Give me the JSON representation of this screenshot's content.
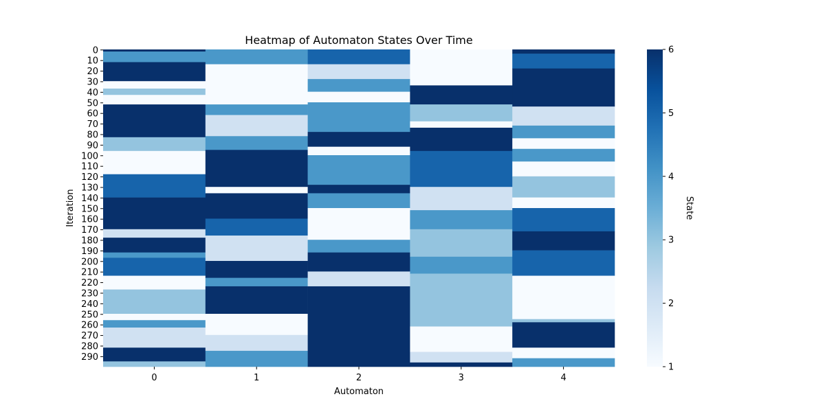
{
  "chart_data": {
    "type": "heatmap",
    "title": "Heatmap of Automaton States Over Time",
    "xlabel": "Automaton",
    "ylabel": "Iteration",
    "x_ticks": [
      "0",
      "1",
      "2",
      "3",
      "4"
    ],
    "y_ticks": [
      "0",
      "10",
      "20",
      "30",
      "40",
      "50",
      "60",
      "70",
      "80",
      "90",
      "100",
      "110",
      "120",
      "130",
      "140",
      "150",
      "160",
      "170",
      "180",
      "190",
      "200",
      "210",
      "220",
      "230",
      "240",
      "250",
      "260",
      "270",
      "280",
      "290"
    ],
    "colorbar": {
      "label": "State",
      "min": 1,
      "max": 6,
      "ticks": [
        "1",
        "2",
        "3",
        "4",
        "5",
        "6"
      ],
      "colormap": "Blues",
      "color_low": "#f7fbff",
      "color_high": "#08306b"
    },
    "n_iterations": 300,
    "columns": [
      {
        "automaton": "0",
        "segments": [
          {
            "start": 0,
            "end": 2,
            "state": 6
          },
          {
            "start": 2,
            "end": 12,
            "state": 4
          },
          {
            "start": 12,
            "end": 30,
            "state": 6
          },
          {
            "start": 30,
            "end": 37,
            "state": 1
          },
          {
            "start": 37,
            "end": 43,
            "state": 3
          },
          {
            "start": 43,
            "end": 52,
            "state": 1
          },
          {
            "start": 52,
            "end": 83,
            "state": 6
          },
          {
            "start": 83,
            "end": 96,
            "state": 3
          },
          {
            "start": 96,
            "end": 118,
            "state": 1
          },
          {
            "start": 118,
            "end": 140,
            "state": 5
          },
          {
            "start": 140,
            "end": 170,
            "state": 6
          },
          {
            "start": 170,
            "end": 178,
            "state": 2
          },
          {
            "start": 178,
            "end": 192,
            "state": 6
          },
          {
            "start": 192,
            "end": 197,
            "state": 4
          },
          {
            "start": 197,
            "end": 214,
            "state": 5
          },
          {
            "start": 214,
            "end": 227,
            "state": 1
          },
          {
            "start": 227,
            "end": 250,
            "state": 3
          },
          {
            "start": 250,
            "end": 256,
            "state": 1
          },
          {
            "start": 256,
            "end": 263,
            "state": 4
          },
          {
            "start": 263,
            "end": 282,
            "state": 2
          },
          {
            "start": 282,
            "end": 295,
            "state": 6
          },
          {
            "start": 295,
            "end": 300,
            "state": 3
          }
        ]
      },
      {
        "automaton": "1",
        "segments": [
          {
            "start": 0,
            "end": 14,
            "state": 4
          },
          {
            "start": 14,
            "end": 52,
            "state": 1
          },
          {
            "start": 52,
            "end": 62,
            "state": 4
          },
          {
            "start": 62,
            "end": 82,
            "state": 2
          },
          {
            "start": 82,
            "end": 95,
            "state": 4
          },
          {
            "start": 95,
            "end": 130,
            "state": 6
          },
          {
            "start": 130,
            "end": 136,
            "state": 1
          },
          {
            "start": 136,
            "end": 160,
            "state": 6
          },
          {
            "start": 160,
            "end": 176,
            "state": 5
          },
          {
            "start": 176,
            "end": 200,
            "state": 2
          },
          {
            "start": 200,
            "end": 216,
            "state": 6
          },
          {
            "start": 216,
            "end": 224,
            "state": 4
          },
          {
            "start": 224,
            "end": 250,
            "state": 6
          },
          {
            "start": 250,
            "end": 270,
            "state": 1
          },
          {
            "start": 270,
            "end": 285,
            "state": 2
          },
          {
            "start": 285,
            "end": 300,
            "state": 4
          }
        ]
      },
      {
        "automaton": "2",
        "segments": [
          {
            "start": 0,
            "end": 14,
            "state": 5
          },
          {
            "start": 14,
            "end": 28,
            "state": 2
          },
          {
            "start": 28,
            "end": 40,
            "state": 4
          },
          {
            "start": 40,
            "end": 50,
            "state": 1
          },
          {
            "start": 50,
            "end": 78,
            "state": 4
          },
          {
            "start": 78,
            "end": 92,
            "state": 6
          },
          {
            "start": 92,
            "end": 100,
            "state": 1
          },
          {
            "start": 100,
            "end": 128,
            "state": 4
          },
          {
            "start": 128,
            "end": 136,
            "state": 6
          },
          {
            "start": 136,
            "end": 150,
            "state": 4
          },
          {
            "start": 150,
            "end": 180,
            "state": 1
          },
          {
            "start": 180,
            "end": 192,
            "state": 4
          },
          {
            "start": 192,
            "end": 210,
            "state": 6
          },
          {
            "start": 210,
            "end": 224,
            "state": 2
          },
          {
            "start": 224,
            "end": 300,
            "state": 6
          }
        ]
      },
      {
        "automaton": "3",
        "segments": [
          {
            "start": 0,
            "end": 34,
            "state": 1
          },
          {
            "start": 34,
            "end": 52,
            "state": 6
          },
          {
            "start": 52,
            "end": 68,
            "state": 3
          },
          {
            "start": 68,
            "end": 74,
            "state": 1
          },
          {
            "start": 74,
            "end": 96,
            "state": 6
          },
          {
            "start": 96,
            "end": 130,
            "state": 5
          },
          {
            "start": 130,
            "end": 152,
            "state": 2
          },
          {
            "start": 152,
            "end": 170,
            "state": 4
          },
          {
            "start": 170,
            "end": 196,
            "state": 3
          },
          {
            "start": 196,
            "end": 212,
            "state": 4
          },
          {
            "start": 212,
            "end": 262,
            "state": 3
          },
          {
            "start": 262,
            "end": 286,
            "state": 1
          },
          {
            "start": 286,
            "end": 296,
            "state": 2
          },
          {
            "start": 296,
            "end": 300,
            "state": 6
          }
        ]
      },
      {
        "automaton": "4",
        "segments": [
          {
            "start": 0,
            "end": 4,
            "state": 6
          },
          {
            "start": 4,
            "end": 18,
            "state": 5
          },
          {
            "start": 18,
            "end": 54,
            "state": 6
          },
          {
            "start": 54,
            "end": 72,
            "state": 2
          },
          {
            "start": 72,
            "end": 84,
            "state": 4
          },
          {
            "start": 84,
            "end": 94,
            "state": 1
          },
          {
            "start": 94,
            "end": 106,
            "state": 4
          },
          {
            "start": 106,
            "end": 120,
            "state": 1
          },
          {
            "start": 120,
            "end": 140,
            "state": 3
          },
          {
            "start": 140,
            "end": 150,
            "state": 1
          },
          {
            "start": 150,
            "end": 172,
            "state": 5
          },
          {
            "start": 172,
            "end": 190,
            "state": 6
          },
          {
            "start": 190,
            "end": 214,
            "state": 5
          },
          {
            "start": 214,
            "end": 255,
            "state": 1
          },
          {
            "start": 255,
            "end": 258,
            "state": 3
          },
          {
            "start": 258,
            "end": 282,
            "state": 6
          },
          {
            "start": 282,
            "end": 292,
            "state": 1
          },
          {
            "start": 292,
            "end": 300,
            "state": 4
          }
        ]
      }
    ]
  }
}
